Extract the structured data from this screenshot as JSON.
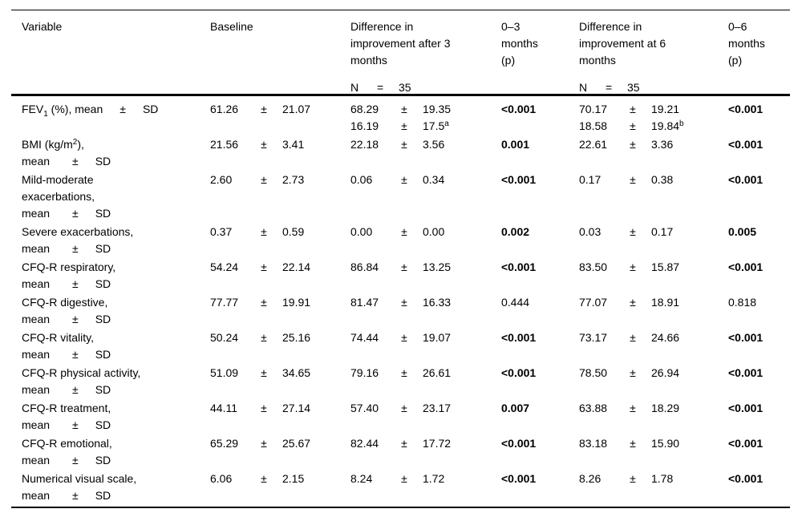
{
  "page": {
    "background": "#ffffff",
    "text_color": "#000000"
  },
  "table": {
    "pm": "±",
    "header": {
      "columns": [
        {
          "label": "Variable"
        },
        {
          "label": "Baseline"
        },
        {
          "label": "Difference in improvement after 3 months",
          "n": {
            "label": "N",
            "eq": "=",
            "value": "35"
          }
        },
        {
          "label": "0–3 months (p)"
        },
        {
          "label": "Difference in improvement at 6 months",
          "n": {
            "label": "N",
            "eq": "=",
            "value": "35"
          }
        },
        {
          "label": "0–6 months (p)"
        }
      ]
    },
    "rows": [
      {
        "label": [
          "FEV~1~ (%), mean  ±  SD"
        ],
        "baseline": {
          "mean": "61.26",
          "sd": "21.07"
        },
        "diff3": [
          {
            "mean": "68.29",
            "sd": "19.35"
          },
          {
            "mean": "16.19",
            "sd": "17.5^a^"
          }
        ],
        "p03": {
          "text": "<0.001",
          "bold": true
        },
        "diff6": [
          {
            "mean": "70.17",
            "sd": "19.21"
          },
          {
            "mean": "18.58",
            "sd": "19.84^b^"
          }
        ],
        "p06": {
          "text": "<0.001",
          "bold": true
        }
      },
      {
        "label": [
          "BMI (kg/m^2^),",
          "mean  ±  SD"
        ],
        "baseline": {
          "mean": "21.56",
          "sd": "3.41"
        },
        "diff3": [
          {
            "mean": "22.18",
            "sd": "3.56"
          }
        ],
        "p03": {
          "text": "0.001",
          "bold": true
        },
        "diff6": [
          {
            "mean": "22.61",
            "sd": "3.36"
          }
        ],
        "p06": {
          "text": "<0.001",
          "bold": true
        }
      },
      {
        "label": [
          "Mild-moderate",
          "exacerbations,",
          "mean  ±  SD"
        ],
        "baseline": {
          "mean": "2.60",
          "sd": "2.73"
        },
        "diff3": [
          {
            "mean": "0.06",
            "sd": "0.34"
          }
        ],
        "p03": {
          "text": "<0.001",
          "bold": true
        },
        "diff6": [
          {
            "mean": "0.17",
            "sd": "0.38"
          }
        ],
        "p06": {
          "text": "<0.001",
          "bold": true
        }
      },
      {
        "label": [
          "Severe exacerbations,",
          "mean  ±  SD"
        ],
        "baseline": {
          "mean": "0.37",
          "sd": "0.59"
        },
        "diff3": [
          {
            "mean": "0.00",
            "sd": "0.00"
          }
        ],
        "p03": {
          "text": "0.002",
          "bold": true
        },
        "diff6": [
          {
            "mean": "0.03",
            "sd": "0.17"
          }
        ],
        "p06": {
          "text": "0.005",
          "bold": true
        }
      },
      {
        "label": [
          "CFQ-R respiratory,",
          "mean  ±  SD"
        ],
        "baseline": {
          "mean": "54.24",
          "sd": "22.14"
        },
        "diff3": [
          {
            "mean": "86.84",
            "sd": "13.25"
          }
        ],
        "p03": {
          "text": "<0.001",
          "bold": true
        },
        "diff6": [
          {
            "mean": "83.50",
            "sd": "15.87"
          }
        ],
        "p06": {
          "text": "<0.001",
          "bold": true
        }
      },
      {
        "label": [
          "CFQ-R digestive,",
          "mean  ±  SD"
        ],
        "baseline": {
          "mean": "77.77",
          "sd": "19.91"
        },
        "diff3": [
          {
            "mean": "81.47",
            "sd": "16.33"
          }
        ],
        "p03": {
          "text": "0.444",
          "bold": false
        },
        "diff6": [
          {
            "mean": "77.07",
            "sd": "18.91"
          }
        ],
        "p06": {
          "text": "0.818",
          "bold": false
        }
      },
      {
        "label": [
          "CFQ-R vitality,",
          "mean  ±  SD"
        ],
        "baseline": {
          "mean": "50.24",
          "sd": "25.16"
        },
        "diff3": [
          {
            "mean": "74.44",
            "sd": "19.07"
          }
        ],
        "p03": {
          "text": "<0.001",
          "bold": true
        },
        "diff6": [
          {
            "mean": "73.17",
            "sd": "24.66"
          }
        ],
        "p06": {
          "text": "<0.001",
          "bold": true
        }
      },
      {
        "label": [
          "CFQ-R physical activity,",
          "mean  ±  SD"
        ],
        "baseline": {
          "mean": "51.09",
          "sd": "34.65"
        },
        "diff3": [
          {
            "mean": "79.16",
            "sd": "26.61"
          }
        ],
        "p03": {
          "text": "<0.001",
          "bold": true
        },
        "diff6": [
          {
            "mean": "78.50",
            "sd": "26.94"
          }
        ],
        "p06": {
          "text": "<0.001",
          "bold": true
        }
      },
      {
        "label": [
          "CFQ-R treatment,",
          "mean  ±  SD"
        ],
        "baseline": {
          "mean": "44.11",
          "sd": "27.14"
        },
        "diff3": [
          {
            "mean": "57.40",
            "sd": "23.17"
          }
        ],
        "p03": {
          "text": "0.007",
          "bold": true
        },
        "diff6": [
          {
            "mean": "63.88",
            "sd": "18.29"
          }
        ],
        "p06": {
          "text": "<0.001",
          "bold": true
        }
      },
      {
        "label": [
          "CFQ-R emotional,",
          "mean  ±  SD"
        ],
        "baseline": {
          "mean": "65.29",
          "sd": "25.67"
        },
        "diff3": [
          {
            "mean": "82.44",
            "sd": "17.72"
          }
        ],
        "p03": {
          "text": "<0.001",
          "bold": true
        },
        "diff6": [
          {
            "mean": "83.18",
            "sd": "15.90"
          }
        ],
        "p06": {
          "text": "<0.001",
          "bold": true
        }
      },
      {
        "label": [
          "Numerical visual scale,",
          "mean  ±  SD"
        ],
        "baseline": {
          "mean": "6.06",
          "sd": "2.15"
        },
        "diff3": [
          {
            "mean": "8.24",
            "sd": "1.72"
          }
        ],
        "p03": {
          "text": "<0.001",
          "bold": true
        },
        "diff6": [
          {
            "mean": "8.26",
            "sd": "1.78"
          }
        ],
        "p06": {
          "text": "<0.001",
          "bold": true
        }
      }
    ]
  }
}
